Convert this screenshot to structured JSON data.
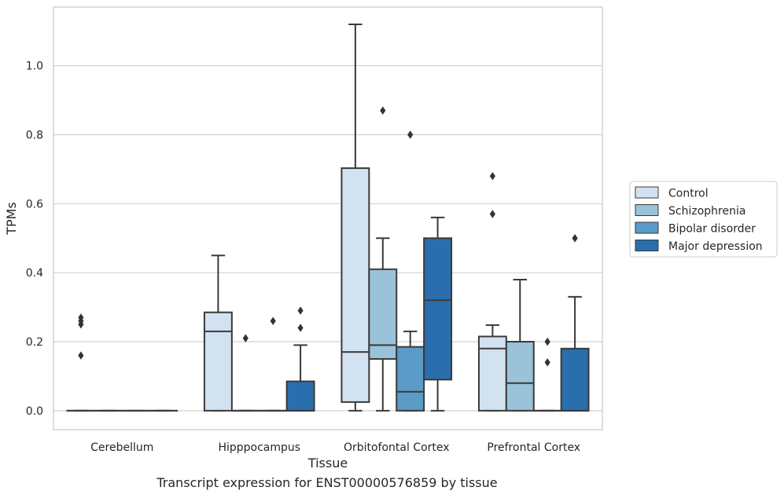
{
  "caption": "Transcript expression for ENST00000576859 by tissue",
  "chart_data": {
    "type": "box",
    "title": "",
    "xlabel": "Tissue",
    "ylabel": "TPMs",
    "ylim": [
      -0.055,
      1.17
    ],
    "yticks": [
      0.0,
      0.2,
      0.4,
      0.6,
      0.8,
      1.0
    ],
    "ytick_labels": [
      "0.0",
      "0.2",
      "0.4",
      "0.6",
      "0.8",
      "1.0"
    ],
    "grid": "horizontal",
    "legend_position": "right",
    "categories": [
      "Cerebellum",
      "Hipppocampus",
      "Orbitofontal Cortex",
      "Prefrontal Cortex"
    ],
    "series": [
      {
        "name": "Control",
        "color": "#d3e2f0",
        "boxes": [
          {
            "q1": 0.0,
            "median": 0.0,
            "q3": 0.0,
            "whislo": 0.0,
            "whishi": 0.0,
            "fliers": [
              0.26,
              0.27,
              0.25,
              0.16
            ]
          },
          {
            "q1": 0.0,
            "median": 0.23,
            "q3": 0.285,
            "whislo": 0.0,
            "whishi": 0.45,
            "fliers": []
          },
          {
            "q1": 0.025,
            "median": 0.17,
            "q3": 0.703,
            "whislo": 0.0,
            "whishi": 1.12,
            "fliers": []
          },
          {
            "q1": 0.0,
            "median": 0.18,
            "q3": 0.215,
            "whislo": 0.0,
            "whishi": 0.248,
            "fliers": [
              0.68,
              0.57
            ]
          }
        ]
      },
      {
        "name": "Schizophrenia",
        "color": "#9ac2d9",
        "boxes": [
          {
            "q1": 0.0,
            "median": 0.0,
            "q3": 0.0,
            "whislo": 0.0,
            "whishi": 0.0,
            "fliers": []
          },
          {
            "q1": 0.0,
            "median": 0.0,
            "q3": 0.0,
            "whislo": 0.0,
            "whishi": 0.0,
            "fliers": [
              0.21
            ]
          },
          {
            "q1": 0.15,
            "median": 0.19,
            "q3": 0.41,
            "whislo": 0.0,
            "whishi": 0.5,
            "fliers": [
              0.87
            ]
          },
          {
            "q1": 0.0,
            "median": 0.08,
            "q3": 0.2,
            "whislo": 0.0,
            "whishi": 0.38,
            "fliers": []
          }
        ]
      },
      {
        "name": "Bipolar disorder",
        "color": "#5a9bc7",
        "boxes": [
          {
            "q1": 0.0,
            "median": 0.0,
            "q3": 0.0,
            "whislo": 0.0,
            "whishi": 0.0,
            "fliers": []
          },
          {
            "q1": 0.0,
            "median": 0.0,
            "q3": 0.0,
            "whislo": 0.0,
            "whishi": 0.0,
            "fliers": [
              0.26
            ]
          },
          {
            "q1": 0.0,
            "median": 0.055,
            "q3": 0.185,
            "whislo": 0.0,
            "whishi": 0.23,
            "fliers": [
              0.8
            ]
          },
          {
            "q1": 0.0,
            "median": 0.0,
            "q3": 0.0,
            "whislo": 0.0,
            "whishi": 0.0,
            "fliers": [
              0.2,
              0.14
            ]
          }
        ]
      },
      {
        "name": "Major depression",
        "color": "#2a6ead",
        "boxes": [
          {
            "q1": 0.0,
            "median": 0.0,
            "q3": 0.0,
            "whislo": 0.0,
            "whishi": 0.0,
            "fliers": []
          },
          {
            "q1": 0.0,
            "median": 0.0,
            "q3": 0.085,
            "whislo": 0.0,
            "whishi": 0.19,
            "fliers": [
              0.29,
              0.24
            ]
          },
          {
            "q1": 0.09,
            "median": 0.32,
            "q3": 0.5,
            "whislo": 0.0,
            "whishi": 0.56,
            "fliers": []
          },
          {
            "q1": 0.0,
            "median": 0.0,
            "q3": 0.18,
            "whislo": 0.0,
            "whishi": 0.33,
            "fliers": [
              0.5
            ]
          }
        ]
      }
    ],
    "colors": {
      "axis": "#cccccc",
      "grid": "#d0d0d0",
      "box_edge": "#3a3a3a",
      "text": "#262626"
    }
  }
}
